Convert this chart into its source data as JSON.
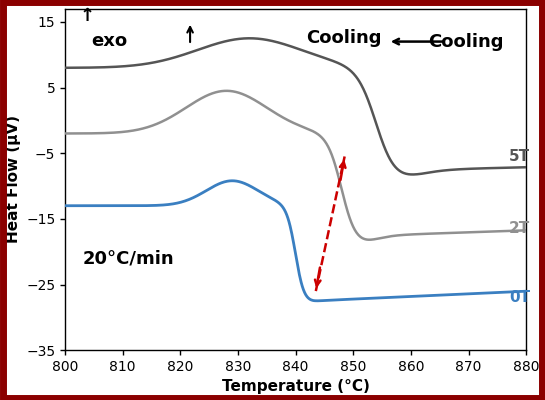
{
  "title": "",
  "xlabel": "Temperature (°C)",
  "ylabel": "Heat Flow (μV)",
  "xlim": [
    800,
    880
  ],
  "ylim": [
    -35,
    17
  ],
  "yticks": [
    -35,
    -25,
    -15,
    -5,
    5,
    15
  ],
  "xticks": [
    800,
    810,
    820,
    830,
    840,
    850,
    860,
    870,
    880
  ],
  "label_0T": "0T",
  "label_2T": "2T",
  "label_5T": "5T",
  "color_0T": "#3a7fc1",
  "color_2T": "#909090",
  "color_5T": "#555555",
  "color_arrow": "#cc0000",
  "annotation_rate": "20°C/min",
  "annotation_cooling": "Cooling",
  "annotation_exo": "exo",
  "background_color": "#ffffff",
  "border_color": "#8b0000",
  "fig_bg": "#ffffff"
}
